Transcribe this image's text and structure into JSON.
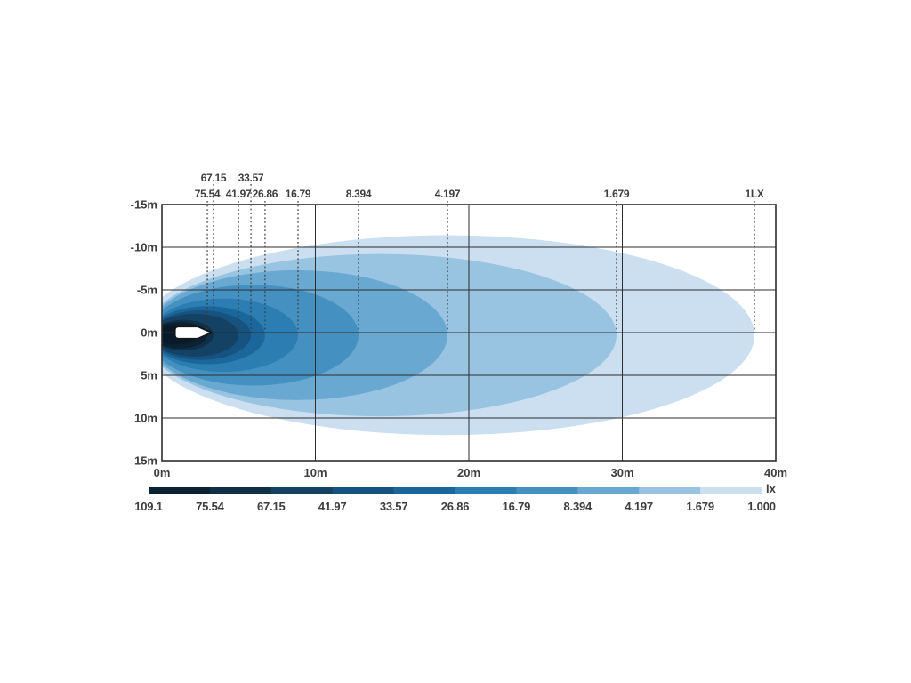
{
  "figure": {
    "background_color": "#ffffff",
    "text_color": "#3d3d3d",
    "grid_color": "#2d2d2d"
  },
  "chart_data": {
    "type": "heatmap",
    "subtype": "isolux_beam_contour_diagram",
    "title": "",
    "unit": "lx",
    "x_axis": {
      "min": 0,
      "max": 40,
      "unit": "m",
      "ticks": [
        {
          "value": 0,
          "label": "0m"
        },
        {
          "value": 10,
          "label": "10m"
        },
        {
          "value": 20,
          "label": "20m"
        },
        {
          "value": 30,
          "label": "30m"
        },
        {
          "value": 40,
          "label": "40m"
        }
      ],
      "gridline_values": [
        10,
        20,
        30
      ]
    },
    "y_axis": {
      "min": -15,
      "max": 15,
      "unit": "m",
      "ticks": [
        {
          "value": -15,
          "label": "-15m"
        },
        {
          "value": -10,
          "label": "-10m"
        },
        {
          "value": -5,
          "label": "-5m"
        },
        {
          "value": 0,
          "label": "0m"
        },
        {
          "value": 5,
          "label": "5m"
        },
        {
          "value": 10,
          "label": "10m"
        },
        {
          "value": 15,
          "label": "15m"
        }
      ],
      "gridline_values": [
        -10,
        -5,
        0,
        5,
        10
      ]
    },
    "beam_center_offset_m": 0.3,
    "contours": [
      {
        "lux_label": "1.000",
        "lux": 1.0,
        "reach_m": 38.61,
        "left_m": -1.5,
        "half_height_m": 11.7,
        "color": "#cbdff0",
        "guide_label": "1LX",
        "guide_row": "lower"
      },
      {
        "lux_label": "1.679",
        "lux": 1.679,
        "reach_m": 29.62,
        "left_m": -1.2,
        "half_height_m": 9.5,
        "color": "#98c4e1",
        "guide_label": "1.679",
        "guide_row": "lower"
      },
      {
        "lux_label": "4.197",
        "lux": 4.197,
        "reach_m": 18.61,
        "left_m": -1.0,
        "half_height_m": 7.6,
        "color": "#69a9d1",
        "guide_label": "4.197",
        "guide_row": "lower"
      },
      {
        "lux_label": "8.394",
        "lux": 8.394,
        "reach_m": 12.81,
        "left_m": -0.9,
        "half_height_m": 5.9,
        "color": "#4491c1",
        "guide_label": "8.394",
        "guide_row": "lower"
      },
      {
        "lux_label": "16.79",
        "lux": 16.79,
        "reach_m": 8.87,
        "left_m": -0.8,
        "half_height_m": 4.3,
        "color": "#2c7db1",
        "guide_label": "16.79",
        "guide_row": "lower"
      },
      {
        "lux_label": "26.86",
        "lux": 26.86,
        "reach_m": 6.72,
        "left_m": -0.8,
        "half_height_m": 3.4,
        "color": "#1b679b",
        "guide_label": "26.86",
        "guide_row": "lower"
      },
      {
        "lux_label": "33.57",
        "lux": 33.57,
        "reach_m": 5.8,
        "left_m": -0.7,
        "half_height_m": 2.9,
        "color": "#175381",
        "guide_label": "33.57",
        "guide_row": "upper"
      },
      {
        "lux_label": "41.97",
        "lux": 41.97,
        "reach_m": 4.99,
        "left_m": -0.7,
        "half_height_m": 2.5,
        "color": "#144264",
        "guide_label": "41.97",
        "guide_row": "lower"
      },
      {
        "lux_label": "67.15",
        "lux": 67.15,
        "reach_m": 3.36,
        "left_m": -0.6,
        "half_height_m": 1.8,
        "color": "#103049",
        "guide_label": "67.15",
        "guide_row": "upper"
      },
      {
        "lux_label": "75.54",
        "lux": 75.54,
        "reach_m": 2.96,
        "left_m": -0.6,
        "half_height_m": 1.55,
        "color": "#0c2233",
        "guide_label": "75.54",
        "guide_row": "lower"
      },
      {
        "lux_label": "109.1",
        "lux": 109.1,
        "reach_m": 2.3,
        "left_m": -0.5,
        "half_height_m": 1.1,
        "color": "#091b29",
        "guide_label": null,
        "guide_row": null
      }
    ],
    "lamp": {
      "x_start_m": 0.85,
      "x_end_m": 3.25,
      "half_height_m": 0.7,
      "fill": "#ffffff",
      "outline": "#161616"
    },
    "legend": {
      "unit": "lx",
      "boundary_labels": [
        "109.1",
        "75.54",
        "67.15",
        "41.97",
        "33.57",
        "26.86",
        "16.79",
        "8.394",
        "4.197",
        "1.679",
        "1.000"
      ],
      "segment_colors": [
        "#0c2233",
        "#103049",
        "#144264",
        "#175381",
        "#1b679b",
        "#2c7db1",
        "#4491c1",
        "#69a9d1",
        "#98c4e1",
        "#cbdff0"
      ],
      "position": "bottom"
    }
  }
}
